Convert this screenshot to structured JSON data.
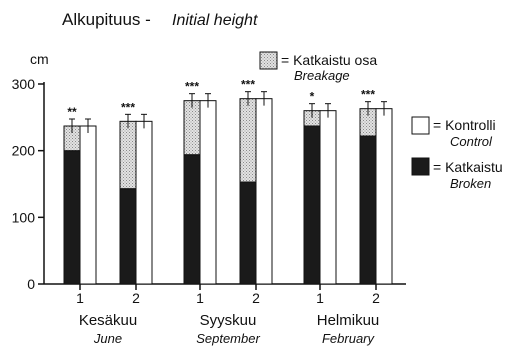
{
  "title": "Alkupituus -",
  "title_en": "Initial height",
  "y_unit": "cm",
  "legend": {
    "breakage": {
      "label": "= Katkaistu osa",
      "label_en": "Breakage"
    },
    "control": {
      "label": "= Kontrolli",
      "label_en": "Control"
    },
    "broken": {
      "label": "= Katkaistu",
      "label_en": "Broken"
    }
  },
  "colors": {
    "broken": "#1a1a1a",
    "breakage": "#d2d2d2",
    "control": "#ffffff",
    "axis": "#111111"
  },
  "chart_data": {
    "type": "bar",
    "title": "Alkupituus - Initial height",
    "ylabel": "cm",
    "ylim": [
      0,
      300
    ],
    "yticks": [
      0,
      100,
      200,
      300
    ],
    "grid": false,
    "legend_position": "right",
    "groups": [
      {
        "label": "Kesäkuu",
        "label_en": "June",
        "subgroups": [
          {
            "label": "1",
            "significance": "**",
            "broken": 200,
            "breakage": 37,
            "treated_total": 237,
            "control": 237
          },
          {
            "label": "2",
            "significance": "***",
            "broken": 143,
            "breakage": 101,
            "treated_total": 244,
            "control": 244
          }
        ]
      },
      {
        "label": "Syyskuu",
        "label_en": "September",
        "subgroups": [
          {
            "label": "1",
            "significance": "***",
            "broken": 194,
            "breakage": 81,
            "treated_total": 275,
            "control": 275
          },
          {
            "label": "2",
            "significance": "***",
            "broken": 153,
            "breakage": 125,
            "treated_total": 278,
            "control": 278
          }
        ]
      },
      {
        "label": "Helmikuu",
        "label_en": "February",
        "subgroups": [
          {
            "label": "1",
            "significance": "*",
            "broken": 237,
            "breakage": 23,
            "treated_total": 260,
            "control": 260
          },
          {
            "label": "2",
            "significance": "***",
            "broken": 222,
            "breakage": 41,
            "treated_total": 263,
            "control": 263
          }
        ]
      }
    ]
  }
}
